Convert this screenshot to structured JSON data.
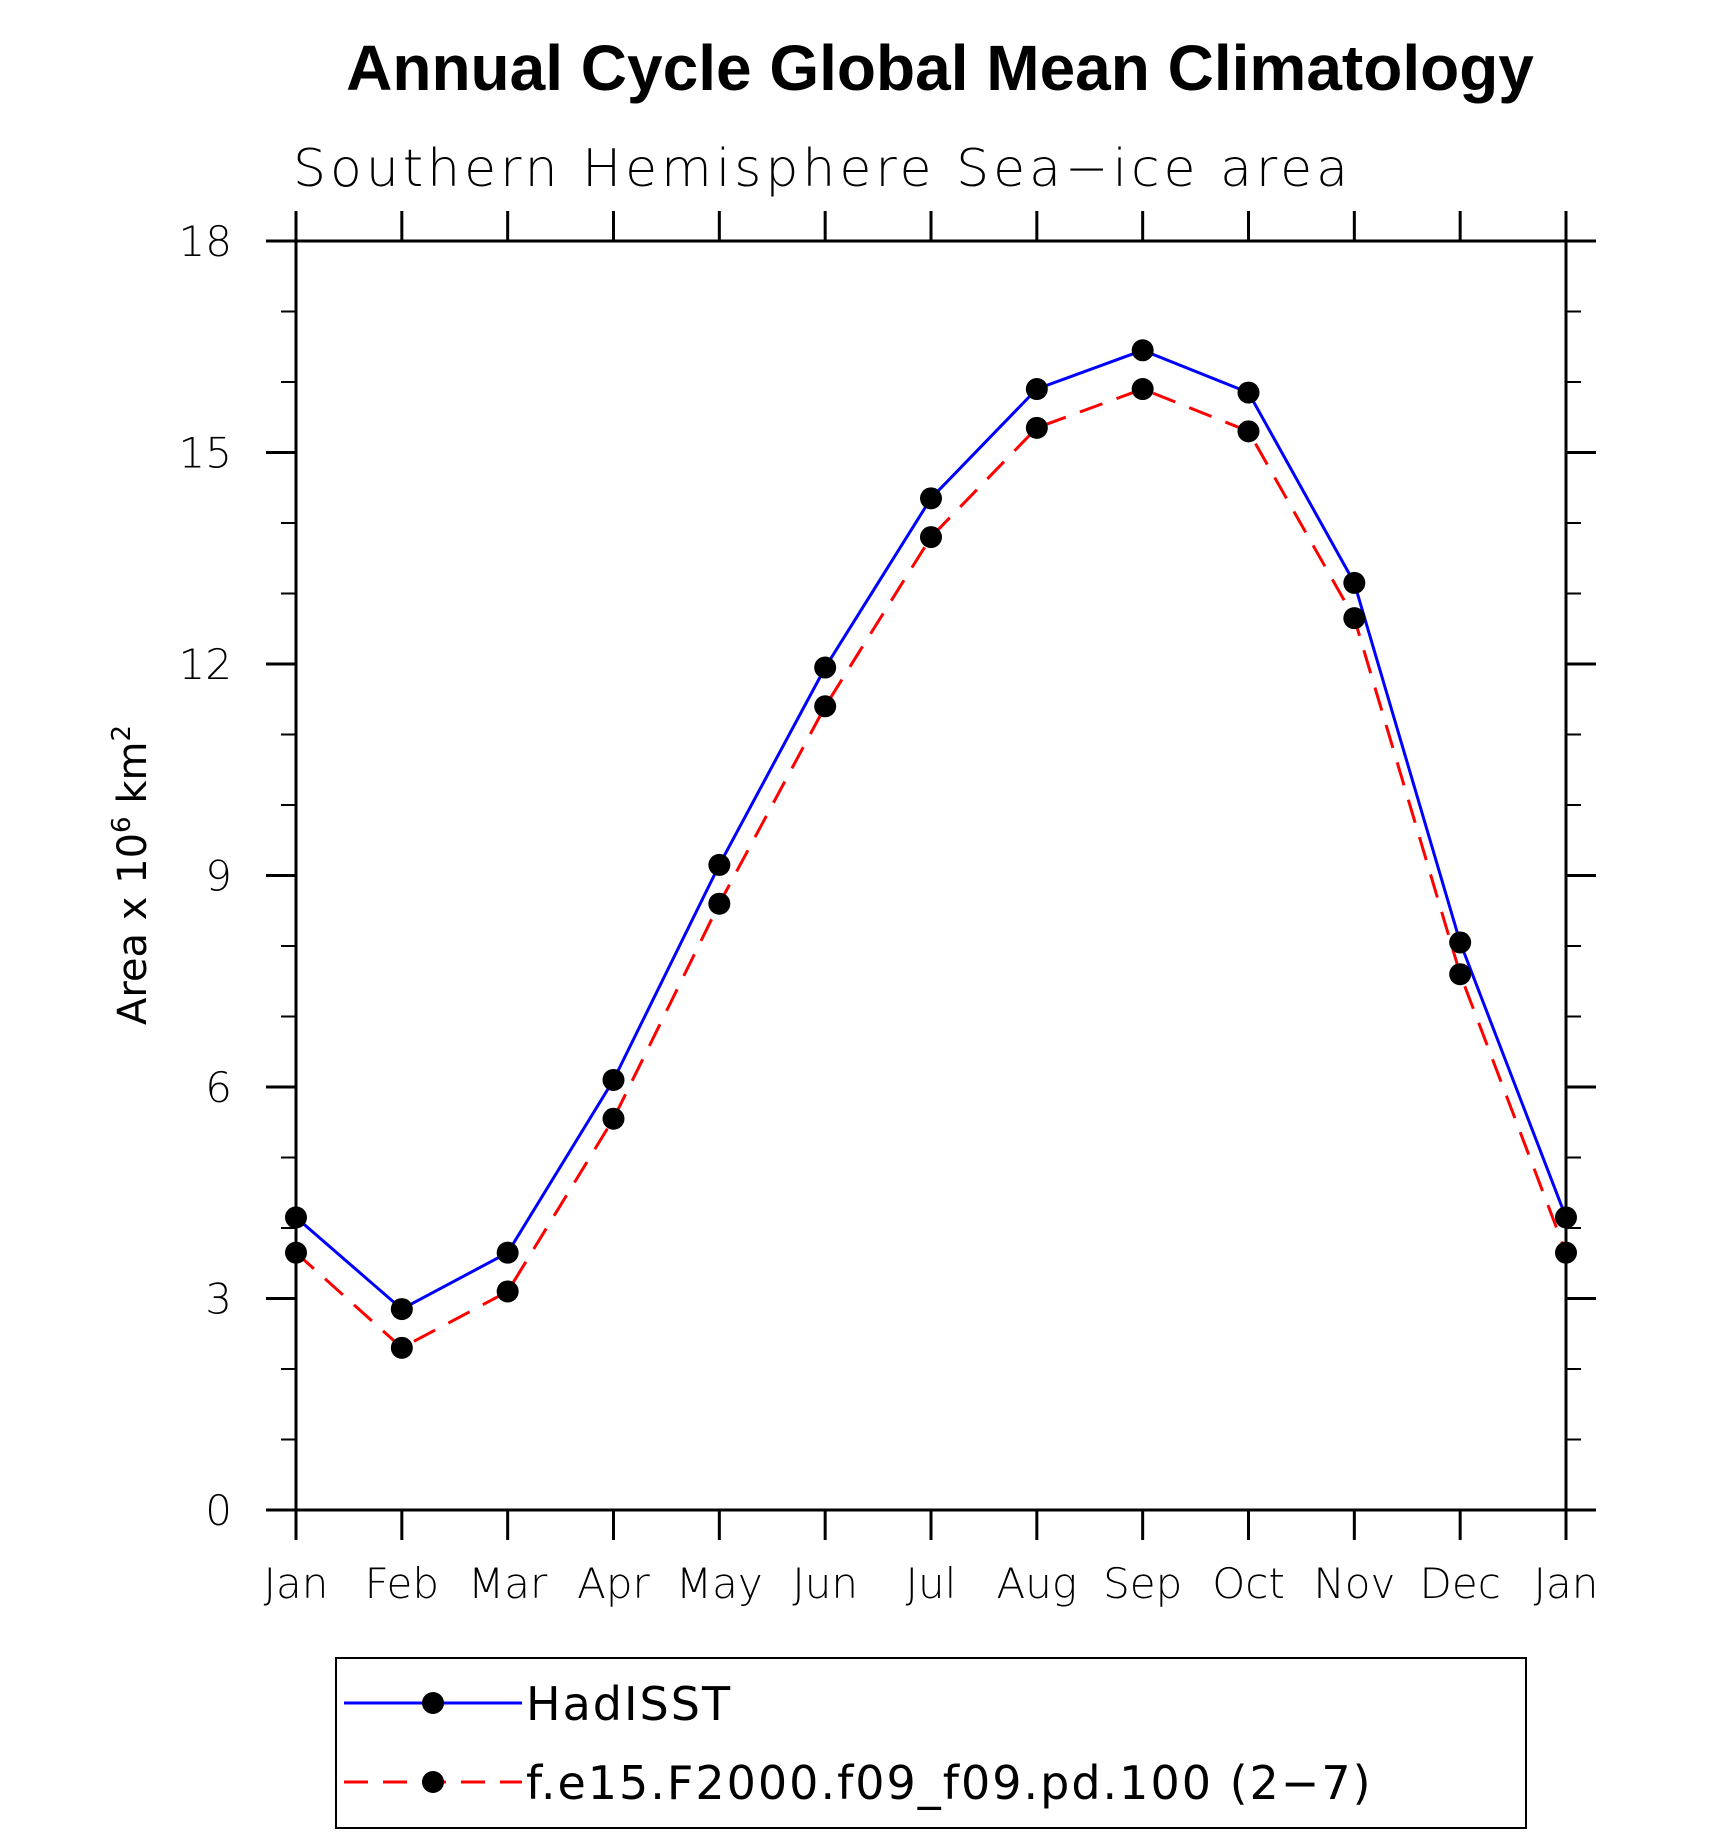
{
  "chart_data": {
    "type": "line",
    "title": "Annual Cycle Global Mean Climatology",
    "subtitle": "Southern Hemisphere Sea−ice area",
    "ylabel_prefix": "Area x 10",
    "ylabel_exp1": "6",
    "ylabel_mid": " km",
    "ylabel_exp2": "2",
    "categories": [
      "Jan",
      "Feb",
      "Mar",
      "Apr",
      "May",
      "Jun",
      "Jul",
      "Aug",
      "Sep",
      "Oct",
      "Nov",
      "Dec",
      "Jan"
    ],
    "ylim": [
      0,
      18
    ],
    "yticks": [
      0,
      3,
      6,
      9,
      12,
      15,
      18
    ],
    "ytick_labels": [
      "0",
      "3",
      "6",
      "9",
      "12",
      "15",
      "18"
    ],
    "grid": false,
    "legend_position": "bottom",
    "series": [
      {
        "name": "HadISST",
        "color": "#0000ff",
        "line_style": "solid",
        "values": [
          4.15,
          2.85,
          3.65,
          6.1,
          9.15,
          11.95,
          14.35,
          15.9,
          16.45,
          15.85,
          13.15,
          8.05,
          4.15
        ]
      },
      {
        "name": "f.e15.F2000.f09_f09.pd.100 (2−7)",
        "color": "#ff0000",
        "line_style": "dashed",
        "values": [
          3.65,
          2.3,
          3.1,
          5.55,
          8.6,
          11.4,
          13.8,
          15.35,
          15.9,
          15.3,
          12.65,
          7.6,
          3.65
        ]
      }
    ]
  }
}
